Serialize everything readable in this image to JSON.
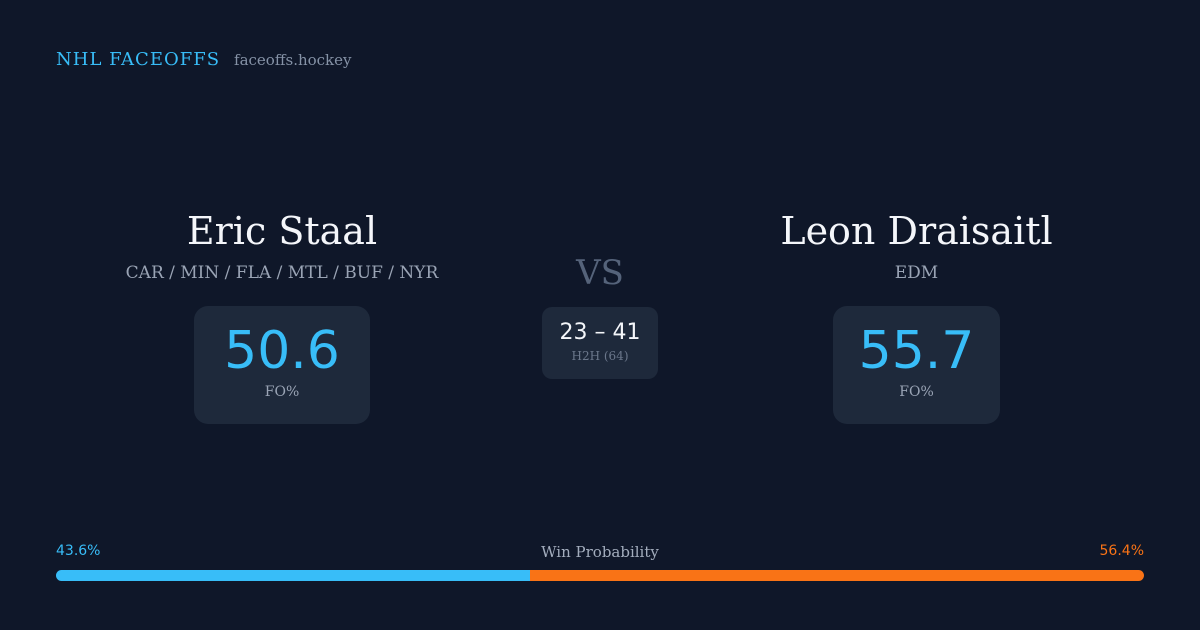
{
  "brand": {
    "title": "NHL FACEOFFS",
    "url": "faceoffs.hockey"
  },
  "player_left": {
    "name": "Eric Staal",
    "teams": "CAR / MIN / FLA / MTL / BUF / NYR",
    "fo_pct": "50.6",
    "fo_label": "FO%"
  },
  "player_right": {
    "name": "Leon Draisaitl",
    "teams": "EDM",
    "fo_pct": "55.7",
    "fo_label": "FO%"
  },
  "matchup": {
    "vs": "VS",
    "h2h_score": "23 – 41",
    "h2h_label": "H2H (64)"
  },
  "win_probability": {
    "title": "Win Probability",
    "left_label": "43.6%",
    "right_label": "56.4%",
    "left_value": 43.6,
    "right_value": 56.4
  },
  "colors": {
    "background": "#0f1729",
    "card": "#1e293b",
    "accent_blue": "#38bdf8",
    "accent_orange": "#f97316"
  }
}
